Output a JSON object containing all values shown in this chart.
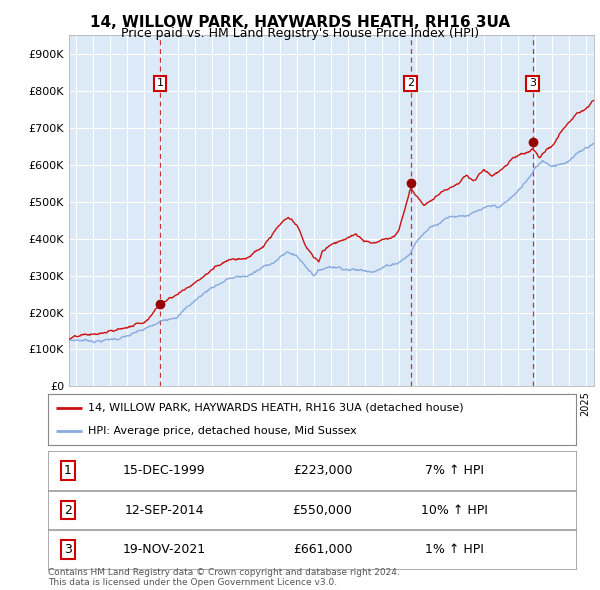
{
  "title": "14, WILLOW PARK, HAYWARDS HEATH, RH16 3UA",
  "subtitle": "Price paid vs. HM Land Registry's House Price Index (HPI)",
  "plot_bg_color": "#dce9f7",
  "grid_color": "#ffffff",
  "ylim": [
    0,
    950000
  ],
  "yticks": [
    0,
    100000,
    200000,
    300000,
    400000,
    500000,
    600000,
    700000,
    800000,
    900000
  ],
  "ytick_labels": [
    "£0",
    "£100K",
    "£200K",
    "£300K",
    "£400K",
    "£500K",
    "£600K",
    "£700K",
    "£800K",
    "£900K"
  ],
  "red_line_color": "#cc1111",
  "blue_line_color": "#88aadd",
  "sale_marker_color": "#990000",
  "vline_color": "#cc1111",
  "annotation_box_color": "#cc0000",
  "sales": [
    {
      "date_num": 1999.96,
      "price": 223000,
      "label": "1"
    },
    {
      "date_num": 2014.71,
      "price": 550000,
      "label": "2"
    },
    {
      "date_num": 2021.89,
      "price": 661000,
      "label": "3"
    }
  ],
  "legend_entries": [
    "14, WILLOW PARK, HAYWARDS HEATH, RH16 3UA (detached house)",
    "HPI: Average price, detached house, Mid Sussex"
  ],
  "table_rows": [
    {
      "num": "1",
      "date": "15-DEC-1999",
      "price": "£223,000",
      "hpi": "7% ↑ HPI"
    },
    {
      "num": "2",
      "date": "12-SEP-2014",
      "price": "£550,000",
      "hpi": "10% ↑ HPI"
    },
    {
      "num": "3",
      "date": "19-NOV-2021",
      "price": "£661,000",
      "hpi": "1% ↑ HPI"
    }
  ],
  "footer": "Contains HM Land Registry data © Crown copyright and database right 2024.\nThis data is licensed under the Open Government Licence v3.0.",
  "xmin": 1994.6,
  "xmax": 2025.5,
  "hpi_keypoints": [
    [
      1994.6,
      125000
    ],
    [
      1995.0,
      127000
    ],
    [
      1996.0,
      128000
    ],
    [
      1997.0,
      133000
    ],
    [
      1998.0,
      143000
    ],
    [
      1999.0,
      155000
    ],
    [
      2000.0,
      172000
    ],
    [
      2001.0,
      200000
    ],
    [
      2002.0,
      240000
    ],
    [
      2003.0,
      278000
    ],
    [
      2004.0,
      305000
    ],
    [
      2005.0,
      308000
    ],
    [
      2006.0,
      330000
    ],
    [
      2007.0,
      360000
    ],
    [
      2007.5,
      375000
    ],
    [
      2008.0,
      365000
    ],
    [
      2008.5,
      340000
    ],
    [
      2009.0,
      320000
    ],
    [
      2009.5,
      335000
    ],
    [
      2010.0,
      345000
    ],
    [
      2011.0,
      345000
    ],
    [
      2012.0,
      340000
    ],
    [
      2013.0,
      355000
    ],
    [
      2014.0,
      375000
    ],
    [
      2014.71,
      400000
    ],
    [
      2015.0,
      430000
    ],
    [
      2016.0,
      480000
    ],
    [
      2017.0,
      510000
    ],
    [
      2018.0,
      520000
    ],
    [
      2019.0,
      530000
    ],
    [
      2020.0,
      530000
    ],
    [
      2020.5,
      545000
    ],
    [
      2021.0,
      565000
    ],
    [
      2021.5,
      595000
    ],
    [
      2021.89,
      615000
    ],
    [
      2022.0,
      625000
    ],
    [
      2022.5,
      650000
    ],
    [
      2023.0,
      640000
    ],
    [
      2023.5,
      650000
    ],
    [
      2024.0,
      660000
    ],
    [
      2024.5,
      675000
    ],
    [
      2025.0,
      695000
    ],
    [
      2025.5,
      710000
    ]
  ],
  "red_keypoints": [
    [
      1994.6,
      128000
    ],
    [
      1995.0,
      130000
    ],
    [
      1996.0,
      132000
    ],
    [
      1997.0,
      138000
    ],
    [
      1998.0,
      150000
    ],
    [
      1999.0,
      168000
    ],
    [
      1999.96,
      223000
    ],
    [
      2000.5,
      245000
    ],
    [
      2001.0,
      258000
    ],
    [
      2002.0,
      290000
    ],
    [
      2003.0,
      325000
    ],
    [
      2004.0,
      360000
    ],
    [
      2005.0,
      370000
    ],
    [
      2006.0,
      400000
    ],
    [
      2007.0,
      455000
    ],
    [
      2007.5,
      470000
    ],
    [
      2008.0,
      445000
    ],
    [
      2008.5,
      390000
    ],
    [
      2009.0,
      355000
    ],
    [
      2009.3,
      345000
    ],
    [
      2009.5,
      370000
    ],
    [
      2010.0,
      390000
    ],
    [
      2010.5,
      405000
    ],
    [
      2011.0,
      415000
    ],
    [
      2011.5,
      420000
    ],
    [
      2012.0,
      400000
    ],
    [
      2012.5,
      390000
    ],
    [
      2013.0,
      405000
    ],
    [
      2013.5,
      415000
    ],
    [
      2014.0,
      435000
    ],
    [
      2014.71,
      550000
    ],
    [
      2015.0,
      530000
    ],
    [
      2015.5,
      510000
    ],
    [
      2016.0,
      530000
    ],
    [
      2016.5,
      555000
    ],
    [
      2017.0,
      570000
    ],
    [
      2017.5,
      580000
    ],
    [
      2018.0,
      610000
    ],
    [
      2018.5,
      590000
    ],
    [
      2019.0,
      620000
    ],
    [
      2019.5,
      600000
    ],
    [
      2020.0,
      615000
    ],
    [
      2020.5,
      635000
    ],
    [
      2021.0,
      650000
    ],
    [
      2021.5,
      660000
    ],
    [
      2021.89,
      661000
    ],
    [
      2022.0,
      655000
    ],
    [
      2022.3,
      640000
    ],
    [
      2022.5,
      650000
    ],
    [
      2023.0,
      670000
    ],
    [
      2023.5,
      700000
    ],
    [
      2024.0,
      730000
    ],
    [
      2024.5,
      760000
    ],
    [
      2025.0,
      770000
    ],
    [
      2025.5,
      790000
    ]
  ]
}
